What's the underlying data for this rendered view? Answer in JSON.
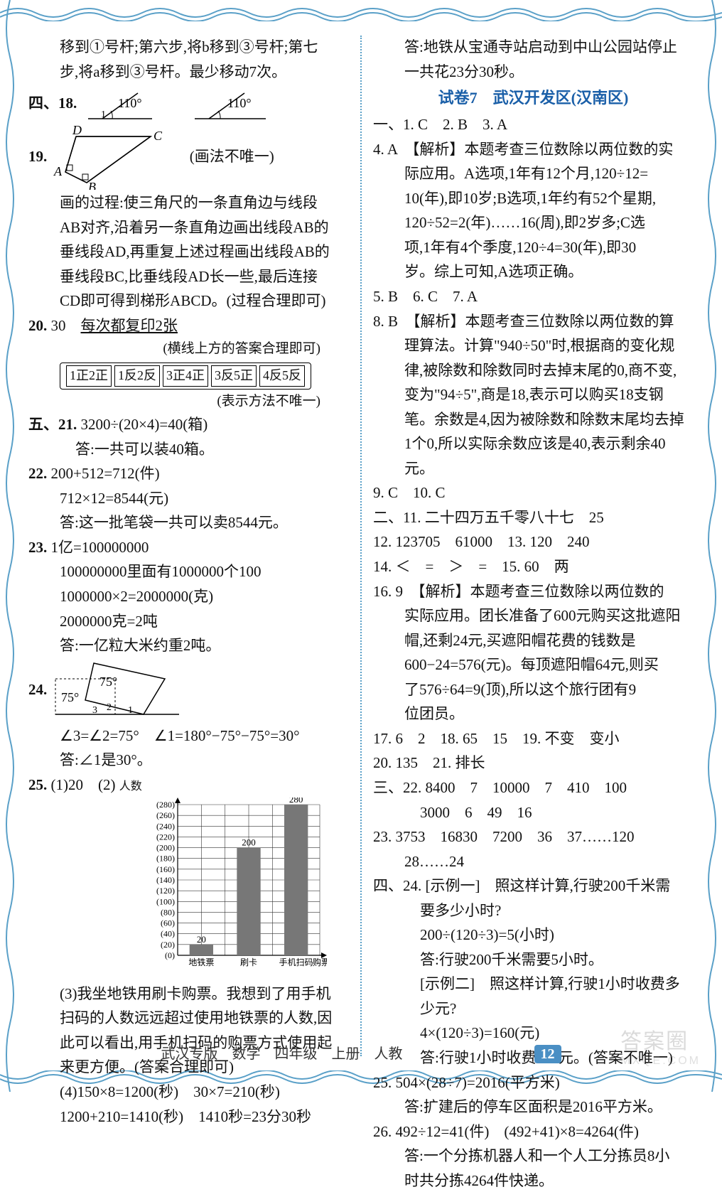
{
  "left": {
    "line1": "移到①号杆;第六步,将b移到③号杆;第七",
    "line2": "步,将a移到③号杆。最少移动7次。",
    "sec4": "四、18.",
    "ang110a": "110°",
    "ang110b": "110°",
    "ang_small": "1",
    "q19": "19.",
    "trap_D": "D",
    "trap_C": "C",
    "trap_A": "A",
    "trap_B": "B",
    "trap_note": "(画法不唯一)",
    "p19a": "画的过程:使三角尺的一条直角边与线段",
    "p19b": "AB对齐,沿着另一条直角边画出线段AB的",
    "p19c": "垂线段AD,再重复上述过程画出线段AB的",
    "p19d": "垂线段BC,比垂线段AD长一些,最后连接",
    "p19e": "CD即可得到梯形ABCD。(过程合理即可)",
    "q20": "20. 30　每次都复印2张",
    "q20note1": "(横线上方的答案合理即可)",
    "copy1": "1正2正",
    "copy2": "1反2反",
    "copy3": "3正4正",
    "copy4": "3反5正",
    "copy5": "4反5反",
    "q20note2": "(表示方法不唯一)",
    "sec5": "五、21. ",
    "q21a": "3200÷(20×4)=40(箱)",
    "q21b": "答:一共可以装40箱。",
    "q22": "22. ",
    "q22a": "200+512=712(件)",
    "q22b": "712×12=8544(元)",
    "q22c": "答:这一批笔袋一共可以卖8544元。",
    "q23": "23. ",
    "q23a": "1亿=100000000",
    "q23b": "100000000里面有1000000个100",
    "q23c": "1000000×2=2000000(克)",
    "q23d": "2000000克=2吨",
    "q23e": "答:一亿粒大米约重2吨。",
    "q24": "24.",
    "ang75a": "75°",
    "ang75b": "75°",
    "ang_lbl3": "3",
    "ang_lbl2": "2",
    "ang_lbl1": "1",
    "q24a": "∠3=∠2=75°　∠1=180°−75°−75°=30°",
    "q24b": "答:∠1是30°。",
    "q25": "25. (1)20　(2)",
    "chart_ylabel": "人数",
    "chart_ymax": 280,
    "chart_ticks": [
      280,
      260,
      240,
      220,
      200,
      180,
      160,
      140,
      120,
      100,
      80,
      60,
      40,
      20,
      0
    ],
    "chart_categories": [
      "地铁票",
      "刷卡",
      "手机扫码"
    ],
    "chart_xlabel_suffix": "购票方式",
    "chart_values": [
      20,
      200,
      280
    ],
    "chart_bar_color": "#777777",
    "chart_grid_color": "#333333",
    "q25c1": "(3)我坐地铁用刷卡购票。我想到了用手机",
    "q25c2": "扫码的人数远远超过使用地铁票的人数,因",
    "q25c3": "此可以看出,用手机扫码的购票方式使用起",
    "q25c4": "来更方便。(答案合理即可)",
    "q25d1": "(4)150×8=1200(秒)　30×7=210(秒)",
    "q25d2": "1200+210=1410(秒)　1410秒=23分30秒"
  },
  "right": {
    "top1": "答:地铁从宝通寺站启动到中山公园站停止",
    "top2": "一共花23分30秒。",
    "title": "试卷7　武汉开发区(汉南区)",
    "l1": "一、1. C　2. B　3. A",
    "l4a": "4. A　【解析】本题考查三位数除以两位数的实",
    "l4b": "际应用。A选项,1年有12个月,120÷12=",
    "l4c": "10(年),即10岁;B选项,1年约有52个星期,",
    "l4d": "120÷52=2(年)……16(周),即2岁多;C选",
    "l4e": "项,1年有4个季度,120÷4=30(年),即30",
    "l4f": "岁。综上可知,A选项正确。",
    "l5": "5. B　6. C　7. A",
    "l8a": "8. B　【解析】本题考查三位数除以两位数的算",
    "l8b": "理算法。计算\"940÷50\"时,根据商的变化规",
    "l8c": "律,被除数和除数同时去掉末尾的0,商不变,",
    "l8d": "变为\"94÷5\",商是18,表示可以购买18支钢",
    "l8e": "笔。余数是4,因为被除数和除数末尾均去掉",
    "l8f": "1个0,所以实际余数应该是40,表示剩余40",
    "l8g": "元。",
    "l9": "9. C　10. C",
    "l11": "二、11. 二十四万五千零八十七　25",
    "l12": "12. 123705　61000　13. 120　240",
    "l14": "14. ＜　=　＞　=　15. 60　两",
    "l16a": "16. 9　【解析】本题考查三位数除以两位数的",
    "l16b": "实际应用。团长准备了600元购买这批遮阳",
    "l16c": "帽,还剩24元,买遮阳帽花费的钱数是",
    "l16d": "600−24=576(元)。每顶遮阳帽64元,则买",
    "l16e": "了576÷64=9(顶),所以这个旅行团有9",
    "l16f": "位团员。",
    "l17": "17. 6　2　18. 65　15　19. 不变　变小",
    "l20": "20. 135　21. 排长",
    "l22a": "三、22. 8400　7　10000　7　410　100",
    "l22b": "3000　6　49　16",
    "l23a": "23. 3753　16830　7200　36　37……120",
    "l23b": "28……24",
    "l24a": "四、24. [示例一]　照这样计算,行驶200千米需",
    "l24b": "要多少小时?",
    "l24c": "200÷(120÷3)=5(小时)",
    "l24d": "答:行驶200千米需要5小时。",
    "l24e": "[示例二]　照这样计算,行驶1小时收费多",
    "l24f": "少元?",
    "l24g": "4×(120÷3)=160(元)",
    "l24h": "答:行驶1小时收费160元。(答案不唯一)",
    "l25a": "25. 504×(28÷7)=2016(平方米)",
    "l25b": "答:扩建后的停车区面积是2016平方米。",
    "l26a": "26. 492÷12=41(件)　(492+41)×8=4264(件)",
    "l26b": "答:一个分拣机器人和一个人工分拣员8小",
    "l26c": "时共分拣4264件快递。"
  },
  "footer": {
    "text": "武汉专版　数学　四年级　上册　人教",
    "page": "12"
  },
  "watermark": {
    "main": "答案圈",
    "sub": "MXQE.COM"
  },
  "colors": {
    "wave": "#5aa0c8",
    "heading": "#1a5fa8"
  }
}
